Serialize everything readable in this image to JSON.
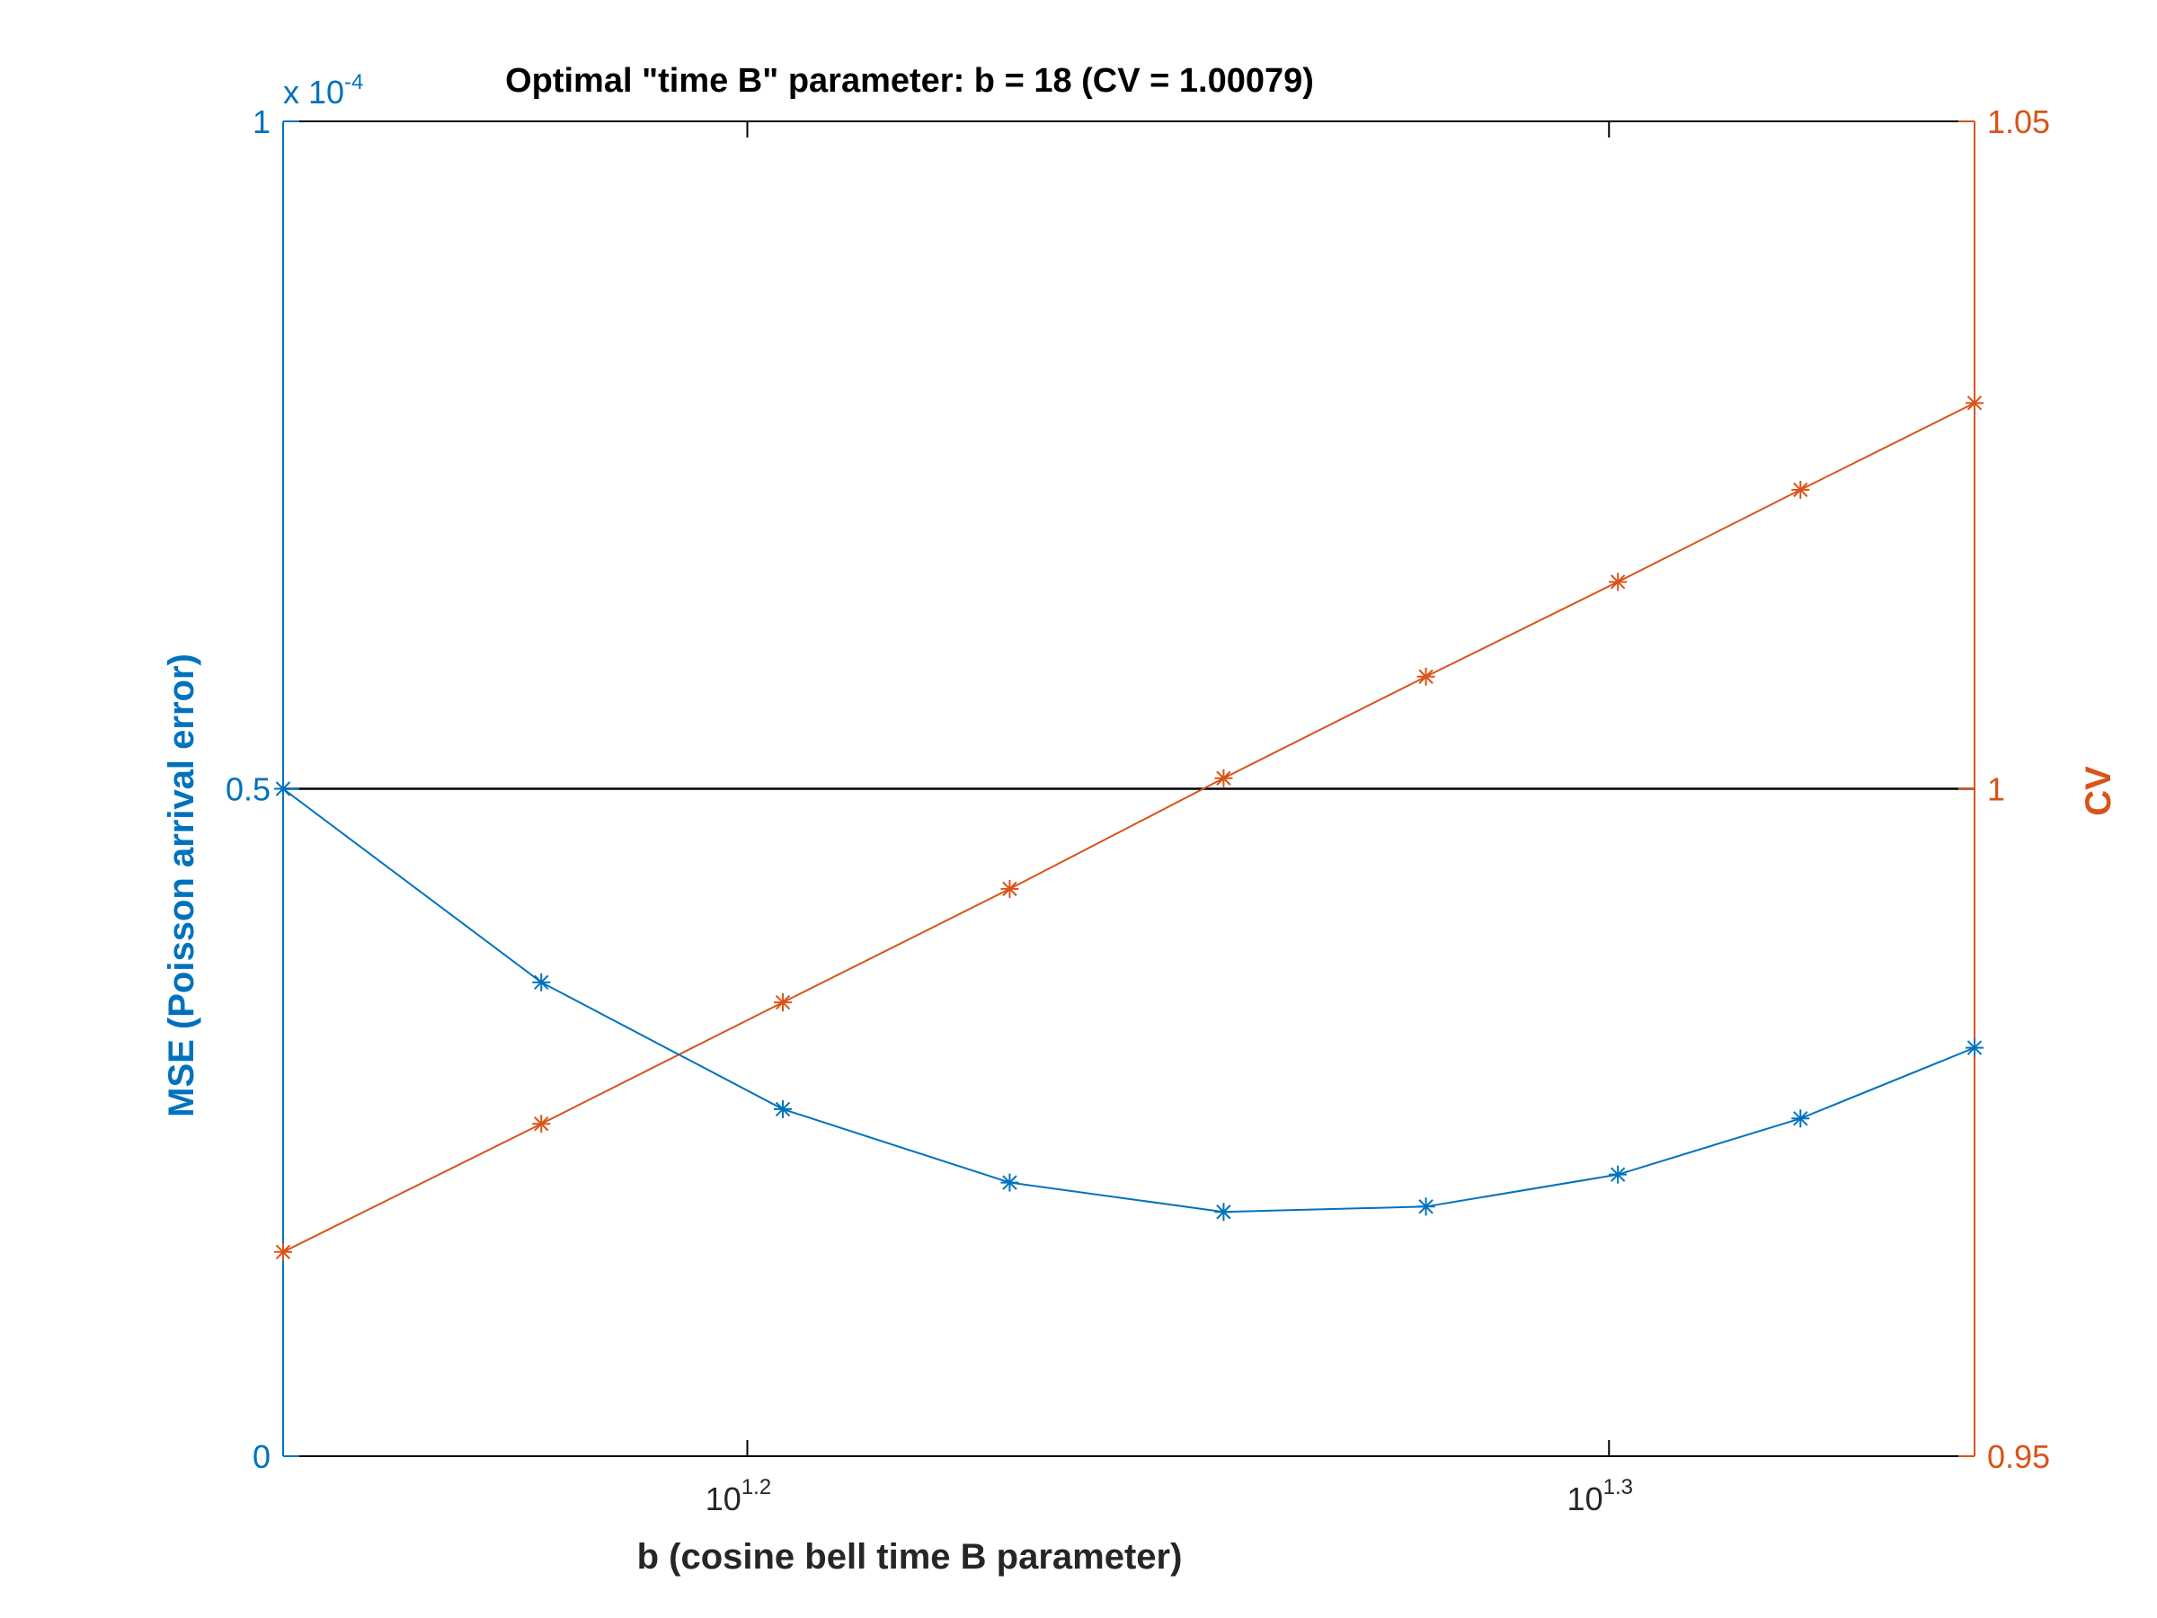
{
  "chart_data": {
    "type": "line",
    "title": "Optimal \"time B\" parameter:  b = 18  (CV = 1.00079)",
    "xlabel": "b   (cosine bell time B parameter)",
    "x_scale": "log",
    "x": [
      14,
      15,
      16,
      17,
      18,
      19,
      20,
      21,
      22
    ],
    "xlim": [
      14,
      22
    ],
    "x_ticks": [
      {
        "value": 15.8489,
        "base": "10",
        "exponent": "1.2"
      },
      {
        "value": 19.9526,
        "base": "10",
        "exponent": "1.3"
      }
    ],
    "grid": false,
    "legend": "none",
    "reference_line": {
      "axis": "left",
      "y": 5e-05
    },
    "left_axis": {
      "label": "MSE (Poisson arrival error)",
      "color": "#0072BD",
      "ylim": [
        0,
        0.0001
      ],
      "ticks": [
        "0",
        "0.5",
        "1"
      ],
      "multiplier_base": "x 10",
      "multiplier_exponent": "-4",
      "values": [
        5e-05,
        3.55e-05,
        2.6e-05,
        2.05e-05,
        1.83e-05,
        1.87e-05,
        2.11e-05,
        2.53e-05,
        3.06e-05
      ]
    },
    "right_axis": {
      "label": "CV",
      "color": "#D95319",
      "ylim": [
        0.95,
        1.05
      ],
      "ticks": [
        "0.95",
        "1",
        "1.05"
      ],
      "values": [
        0.9653,
        0.9749,
        0.984,
        0.9925,
        1.00079,
        1.0084,
        1.0155,
        1.0224,
        1.0289
      ]
    }
  }
}
